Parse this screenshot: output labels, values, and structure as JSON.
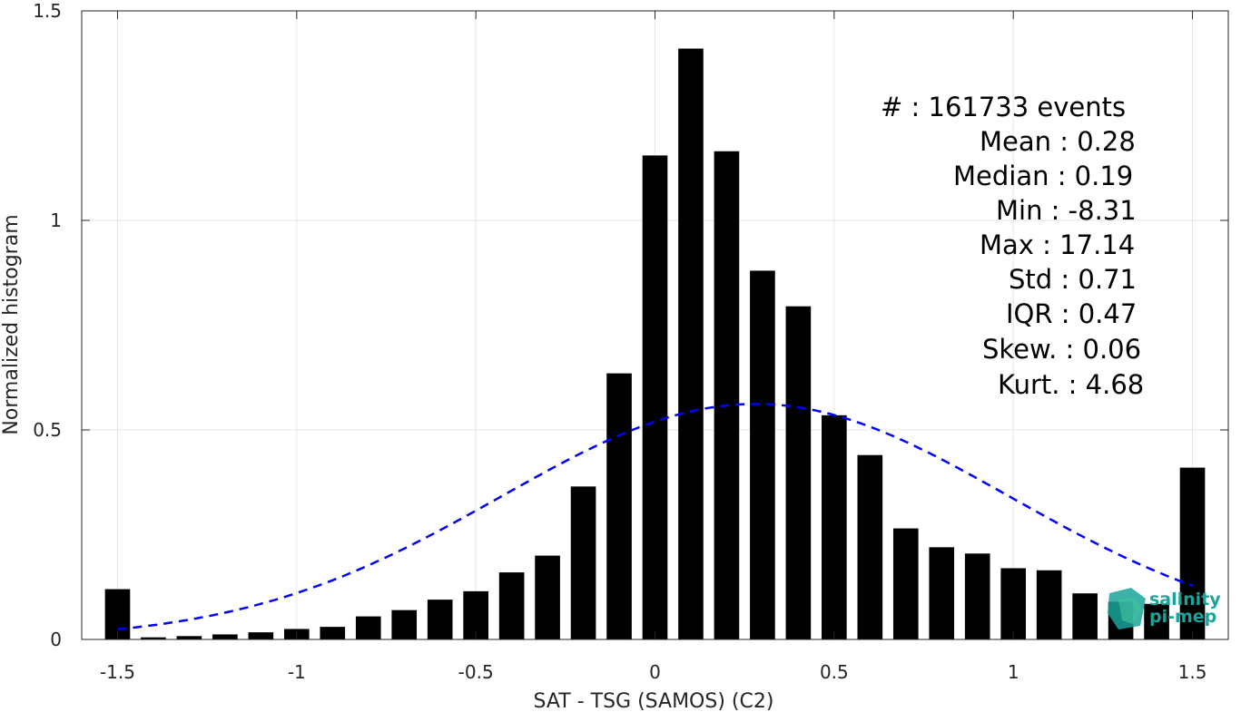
{
  "chart_data": {
    "type": "bar",
    "xlabel": "SAT - TSG (SAMOS) (C2)",
    "ylabel": "Normalized histogram",
    "xlim": [
      -1.6,
      1.6
    ],
    "ylim": [
      0,
      1.5
    ],
    "xticks": [
      -1.5,
      -1,
      -0.5,
      0,
      0.5,
      1,
      1.5
    ],
    "xtick_labels": [
      "-1.5",
      "-1",
      "-0.5",
      "0",
      "0.5",
      "1",
      "1.5"
    ],
    "yticks": [
      0,
      0.5,
      1,
      1.5
    ],
    "ytick_labels": [
      "0",
      "0.5",
      "1",
      "1.5"
    ],
    "grid": true,
    "bar_color": "#000000",
    "fit_color": "#0000ff",
    "bar_width": 0.07,
    "bins": [
      -1.5,
      -1.4,
      -1.3,
      -1.2,
      -1.1,
      -1.0,
      -0.9,
      -0.8,
      -0.7,
      -0.6,
      -0.5,
      -0.4,
      -0.3,
      -0.2,
      -0.1,
      0.0,
      0.1,
      0.2,
      0.3,
      0.4,
      0.5,
      0.6,
      0.7,
      0.8,
      0.9,
      1.0,
      1.1,
      1.2,
      1.3,
      1.4,
      1.5
    ],
    "values": [
      0.12,
      0.005,
      0.008,
      0.012,
      0.017,
      0.025,
      0.03,
      0.055,
      0.07,
      0.095,
      0.115,
      0.16,
      0.2,
      0.365,
      0.635,
      1.155,
      1.41,
      1.165,
      0.88,
      0.795,
      0.535,
      0.44,
      0.265,
      0.22,
      0.205,
      0.17,
      0.165,
      0.11,
      0.09,
      0.085,
      0.41
    ],
    "fit": {
      "type": "normal",
      "mean": 0.28,
      "std": 0.71,
      "style": "dashed",
      "x_range": [
        -1.5,
        1.5
      ]
    },
    "stats": [
      {
        "label": "#  : 161733 events"
      },
      {
        "label": "Mean : 0.28"
      },
      {
        "label": "Median : 0.19"
      },
      {
        "label": "Min : -8.31"
      },
      {
        "label": "Max : 17.14"
      },
      {
        "label": "Std : 0.71"
      },
      {
        "label": "IQR : 0.47"
      },
      {
        "label": "Skew. : 0.06"
      },
      {
        "label": "Kurt. : 4.68"
      }
    ]
  },
  "logo": {
    "line1": "salinity",
    "line2": "pi-mep",
    "color": "#1aa39a"
  }
}
